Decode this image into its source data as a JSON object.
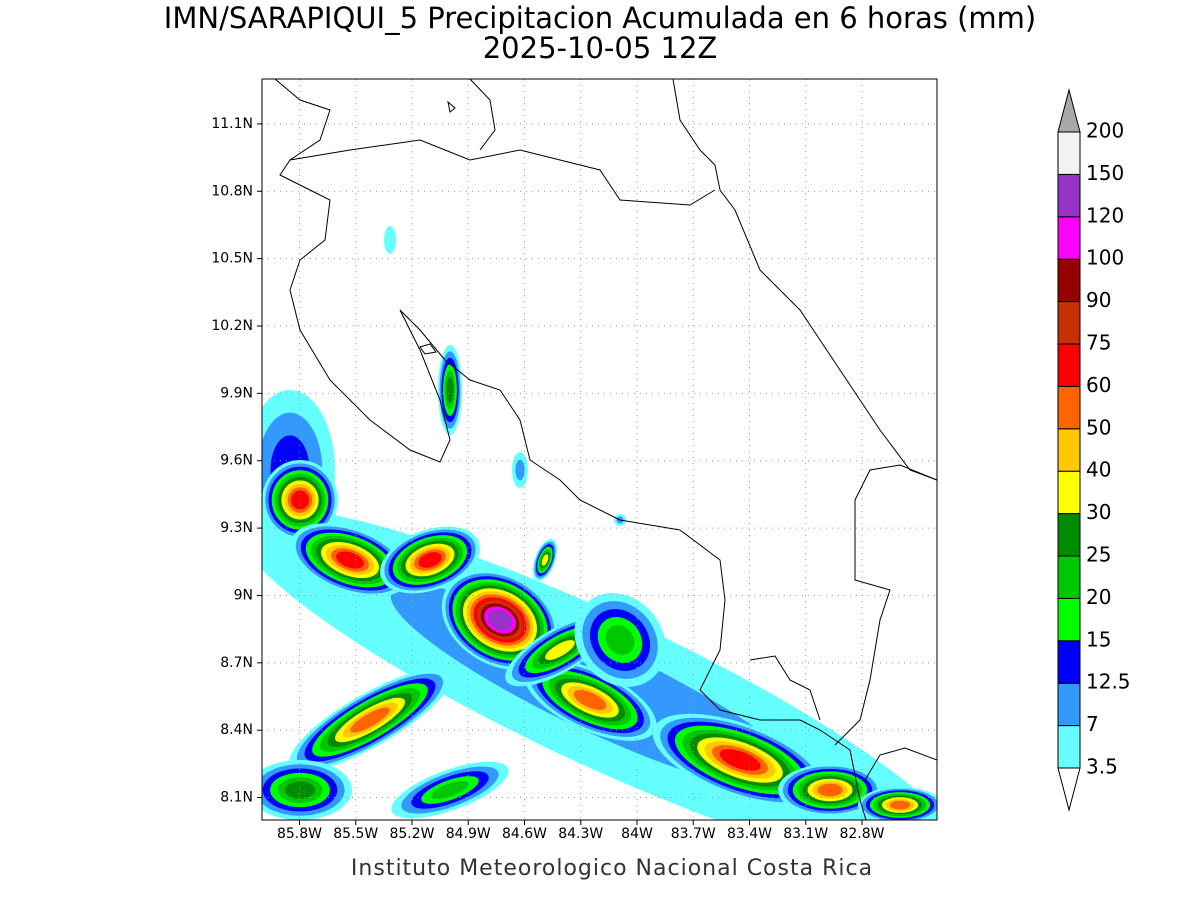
{
  "title": "IMN/SARAPIQUI_5 Precipitacion Acumulada en 6 horas (mm)",
  "subtitle": "2025-10-05 12Z",
  "footer": "Instituto Meteorologico Nacional Costa Rica",
  "map": {
    "xlim": [
      -86.0,
      -82.4
    ],
    "ylim": [
      8.0,
      11.3
    ],
    "xticks": [
      {
        "value": -85.8,
        "label": "85.8W"
      },
      {
        "value": -85.5,
        "label": "85.5W"
      },
      {
        "value": -85.2,
        "label": "85.2W"
      },
      {
        "value": -84.9,
        "label": "84.9W"
      },
      {
        "value": -84.6,
        "label": "84.6W"
      },
      {
        "value": -84.3,
        "label": "84.3W"
      },
      {
        "value": -84.0,
        "label": "84W"
      },
      {
        "value": -83.7,
        "label": "83.7W"
      },
      {
        "value": -83.4,
        "label": "83.4W"
      },
      {
        "value": -83.1,
        "label": "83.1W"
      },
      {
        "value": -82.8,
        "label": "82.8W"
      }
    ],
    "yticks": [
      {
        "value": 8.1,
        "label": "8.1N"
      },
      {
        "value": 8.4,
        "label": "8.4N"
      },
      {
        "value": 8.7,
        "label": "8.7N"
      },
      {
        "value": 9.0,
        "label": "9N"
      },
      {
        "value": 9.3,
        "label": "9.3N"
      },
      {
        "value": 9.6,
        "label": "9.6N"
      },
      {
        "value": 9.9,
        "label": "9.9N"
      },
      {
        "value": 10.2,
        "label": "10.2N"
      },
      {
        "value": 10.5,
        "label": "10.5N"
      },
      {
        "value": 10.8,
        "label": "10.8N"
      },
      {
        "value": 11.1,
        "label": "11.1N"
      }
    ],
    "grid": true
  },
  "colorbar": {
    "levels": [
      3.5,
      7,
      12.5,
      15,
      20,
      25,
      30,
      40,
      50,
      60,
      75,
      90,
      100,
      120,
      150,
      200
    ],
    "colors": [
      "#66ffff",
      "#3399ff",
      "#0000ff",
      "#00ff00",
      "#00c800",
      "#008c00",
      "#ffff00",
      "#ffc800",
      "#ff6400",
      "#ff0000",
      "#c83200",
      "#960000",
      "#ff00ff",
      "#9632c8",
      "#f2f2f2"
    ],
    "under_color": "#ffffff",
    "over_color": "#a8a8a8"
  }
}
